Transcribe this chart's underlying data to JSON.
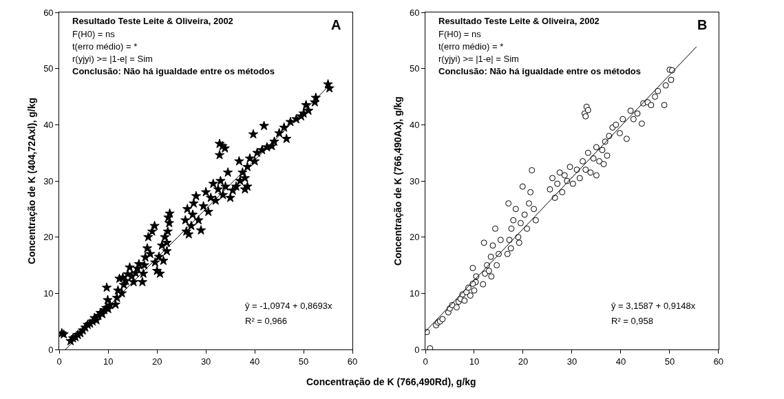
{
  "chart_data": [
    {
      "type": "scatter",
      "title": "Resultado Teste Leite & Oliveira, 2002",
      "ylabel": "Concentração de K (404,72Axl), g/kg",
      "xlabel": "Concentração de K (766,490Rd), g/kg",
      "annotations": [
        "F(H0) = ns",
        "t(erro médio) = *",
        "r(yjyi) >= |1-e| = Sim",
        "Conclusão: Não há igualdade entre os métodos",
        "A",
        "ŷ = -1,0974 + 0,8693x",
        "R² = 0,966"
      ],
      "xlim": [
        0,
        60
      ],
      "ylim": [
        0,
        60
      ],
      "xticks": [
        0,
        10,
        20,
        30,
        40,
        50,
        60
      ],
      "yticks": [
        0,
        10,
        20,
        30,
        40,
        50,
        60
      ],
      "legend": false,
      "series": [
        {
          "marker": "star",
          "color": "#000000",
          "x": [
            0.5,
            0.9,
            2.3,
            2.8,
            3.3,
            3.8,
            4.3,
            4.8,
            5.3,
            5.8,
            6.3,
            6.8,
            7.2,
            7.6,
            8.0,
            8.4,
            8.8,
            9.2,
            9.6,
            10.0,
            10.4,
            9.7,
            9.9,
            11.5,
            11.8,
            12.0,
            12.3,
            12.8,
            13.2,
            13.6,
            14.0,
            14.4,
            14.8,
            15.2,
            15.6,
            16.0,
            16.3,
            13.0,
            17.0,
            17.2,
            17.4,
            17.6,
            18.0,
            18.6,
            18.2,
            19.0,
            19.5,
            19.6,
            20.0,
            20.4,
            21.0,
            21.3,
            21.6,
            22.0,
            22.0,
            22.2,
            22.5,
            22.6,
            22.3,
            20.6,
            26.0,
            25.8,
            26.2,
            26.5,
            27.0,
            27.5,
            27.3,
            28.0,
            28.5,
            29.0,
            29.5,
            30.0,
            30.5,
            31.0,
            31.5,
            32.0,
            32.5,
            33.0,
            33.5,
            34.0,
            34.5,
            35.0,
            35.5,
            36.2,
            37.0,
            37.5,
            38.0,
            38.5,
            38.0,
            32.8,
            33.4,
            33.9,
            32.8,
            39.7,
            41.9,
            36.8,
            38.5,
            39.0,
            40.0,
            40.5,
            41.5,
            42.5,
            43.5,
            44.0,
            45.0,
            46.0,
            46.5,
            47.3,
            48.5,
            49.5,
            50.0,
            50.5,
            51.0,
            52.3,
            52.5,
            55.0,
            55.3
          ],
          "values": [
            2.9,
            2.7,
            1.5,
            2.0,
            2.2,
            2.6,
            2.9,
            3.4,
            3.9,
            4.4,
            4.6,
            5.0,
            5.6,
            5.2,
            6.0,
            6.5,
            6.3,
            7.0,
            7.4,
            7.2,
            7.9,
            11.0,
            8.8,
            8.0,
            9.2,
            10.5,
            12.6,
            10.0,
            11.5,
            12.2,
            13.4,
            14.6,
            13.0,
            12.0,
            13.6,
            14.4,
            15.2,
            12.8,
            12.0,
            13.5,
            15.0,
            16.4,
            18.0,
            17.0,
            20.0,
            21.0,
            22.0,
            15.5,
            14.0,
            16.5,
            18.5,
            15.8,
            20.0,
            19.0,
            17.5,
            21.0,
            22.5,
            24.2,
            23.5,
            13.5,
            21.0,
            23.0,
            25.0,
            20.5,
            22.0,
            26.0,
            24.0,
            27.3,
            23.0,
            21.2,
            25.5,
            28.0,
            24.5,
            27.0,
            29.5,
            26.5,
            28.5,
            30.0,
            27.5,
            29.0,
            31.5,
            27.0,
            28.3,
            29.0,
            30.0,
            31.5,
            30.5,
            29.0,
            28.5,
            36.6,
            36.2,
            35.8,
            34.6,
            38.3,
            39.8,
            33.5,
            32.5,
            34.0,
            33.5,
            35.0,
            35.5,
            36.0,
            36.2,
            37.0,
            38.5,
            39.5,
            37.5,
            40.5,
            41.0,
            41.5,
            42.0,
            43.5,
            42.5,
            44.0,
            44.8,
            47.2,
            46.5
          ]
        },
        {
          "type": "line",
          "color": "#000000",
          "line_style": "solid",
          "x": [
            1.26,
            55.5
          ],
          "values": [
            0,
            47.2
          ]
        }
      ]
    },
    {
      "type": "scatter",
      "title": "Resultado Teste Leite & Oliveira, 2002",
      "ylabel": "Concentração de K (766,490Ax), g/kg",
      "annotations": [
        "F(H0) = ns",
        "t(erro médio) = *",
        "r(yjyi) >= |1-e| = Sim",
        "Conclusão: Não há igualdade entre os métodos",
        "B",
        "ŷ = 3,1587 + 0,9148x",
        "R² = 0,958"
      ],
      "xlim": [
        0,
        60
      ],
      "ylim": [
        0,
        60
      ],
      "xticks": [
        0,
        10,
        20,
        30,
        40,
        50,
        60
      ],
      "yticks": [
        0,
        10,
        20,
        30,
        40,
        50,
        60
      ],
      "legend": false,
      "series": [
        {
          "marker": "circle",
          "color": "#000000",
          "x": [
            0.3,
            0.96,
            2.2,
            2.6,
            3.0,
            3.5,
            4.7,
            5.0,
            5.5,
            6.4,
            6.8,
            7.2,
            7.6,
            8.0,
            8.4,
            8.8,
            9.2,
            9.7,
            10.0,
            10.3,
            9.7,
            10.4,
            11.8,
            12.2,
            12.6,
            13.0,
            13.4,
            13.8,
            14.3,
            14.6,
            15.0,
            15.4,
            12.0,
            13.5,
            16.8,
            17.2,
            17.6,
            18.0,
            17.0,
            18.5,
            19.0,
            19.5,
            19.9,
            20.3,
            20.8,
            21.2,
            21.8,
            22.2,
            22.6,
            21.5,
            17.5,
            19.2,
            25.5,
            26.0,
            26.5,
            27.0,
            27.5,
            28.0,
            28.5,
            29.0,
            29.6,
            30.2,
            31.0,
            31.6,
            32.2,
            32.8,
            33.3,
            33.8,
            34.4,
            35.0,
            35.6,
            36.2,
            36.8,
            37.2,
            36.5,
            35.0,
            32.6,
            33.0,
            33.3,
            32.8,
            37.6,
            38.3,
            39.0,
            39.8,
            40.4,
            41.2,
            42.0,
            42.6,
            43.4,
            44.3,
            44.6,
            45.5,
            46.2,
            47.0,
            47.6,
            48.9,
            49.2,
            50.0,
            50.3,
            50.5
          ],
          "values": [
            3.1,
            0.2,
            4.3,
            4.8,
            5.0,
            5.4,
            6.6,
            7.3,
            7.9,
            7.5,
            8.5,
            9.0,
            9.8,
            8.7,
            10.2,
            11.0,
            9.6,
            14.5,
            10.5,
            12.0,
            11.7,
            13.0,
            11.6,
            13.5,
            15.0,
            14.0,
            16.5,
            18.5,
            21.5,
            15.0,
            17.0,
            19.5,
            19.0,
            13.0,
            17.0,
            19.5,
            21.5,
            23.0,
            26.0,
            25.0,
            20.0,
            22.5,
            29.0,
            24.0,
            21.5,
            26.0,
            31.9,
            25.0,
            23.0,
            28.0,
            18.0,
            19.0,
            28.5,
            30.5,
            27.0,
            29.5,
            31.5,
            28.0,
            31.0,
            30.0,
            32.5,
            29.5,
            32.0,
            30.5,
            33.5,
            32.0,
            35.0,
            31.5,
            34.0,
            36.0,
            33.5,
            35.5,
            37.0,
            34.5,
            33.0,
            31.0,
            42.0,
            43.2,
            42.6,
            41.5,
            38.0,
            39.5,
            40.0,
            38.5,
            41.0,
            37.5,
            42.5,
            41.0,
            42.0,
            40.2,
            43.8,
            44.0,
            43.5,
            45.0,
            46.0,
            43.5,
            47.0,
            49.8,
            48.0,
            49.7
          ]
        },
        {
          "type": "line",
          "color": "#000000",
          "line_style": "solid",
          "x": [
            0,
            55.5
          ],
          "values": [
            3.2,
            53.9
          ]
        }
      ]
    }
  ]
}
